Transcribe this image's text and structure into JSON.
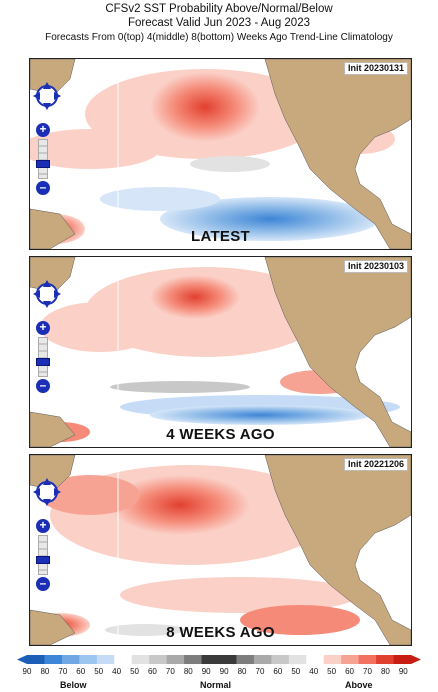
{
  "header": {
    "title": "CFSv2 SST Probability Above/Normal/Below",
    "subtitle": "Forecast Valid Jun 2023 - Aug 2023",
    "line3": "Forecasts From 0(top) 4(middle) 8(bottom) Weeks Ago     Trend-Line Climatology"
  },
  "panels": [
    {
      "init": "Init 20230131",
      "label": "LATEST"
    },
    {
      "init": "Init 20230103",
      "label": "4 WEEKS AGO"
    },
    {
      "init": "Init 20221206",
      "label": "8 WEEKS AGO"
    }
  ],
  "legend": {
    "ticks": [
      "90",
      "80",
      "70",
      "60",
      "50",
      "40",
      "50",
      "60",
      "70",
      "80",
      "90",
      "90",
      "80",
      "70",
      "60",
      "50",
      "40",
      "50",
      "60",
      "70",
      "80",
      "90"
    ],
    "below": "Below",
    "normal": "Normal",
    "above": "Above",
    "colors": {
      "below_scale": [
        "#1b5fb8",
        "#3d85d6",
        "#6ea7e4",
        "#9cc5ef",
        "#c6dcf6",
        "#ffffff"
      ],
      "normal_scale": [
        "#ffffff",
        "#e2e2e2",
        "#c8c8c8",
        "#a9a9a9",
        "#7d7d7d",
        "#3a3a3a"
      ],
      "above_scale": [
        "#ffffff",
        "#fbd0c7",
        "#f7a394",
        "#f2715f",
        "#e2402f",
        "#c81d12"
      ]
    }
  },
  "colors": {
    "land": "#c8a97e",
    "ocean_below": "#8fbbe8",
    "ocean_above": "#f58a78",
    "navigation_accent": "#1a2fb6"
  },
  "icons": {
    "pan": "pan-control-icon",
    "zoom_in": "zoom-in-icon",
    "zoom_out": "zoom-out-icon"
  }
}
